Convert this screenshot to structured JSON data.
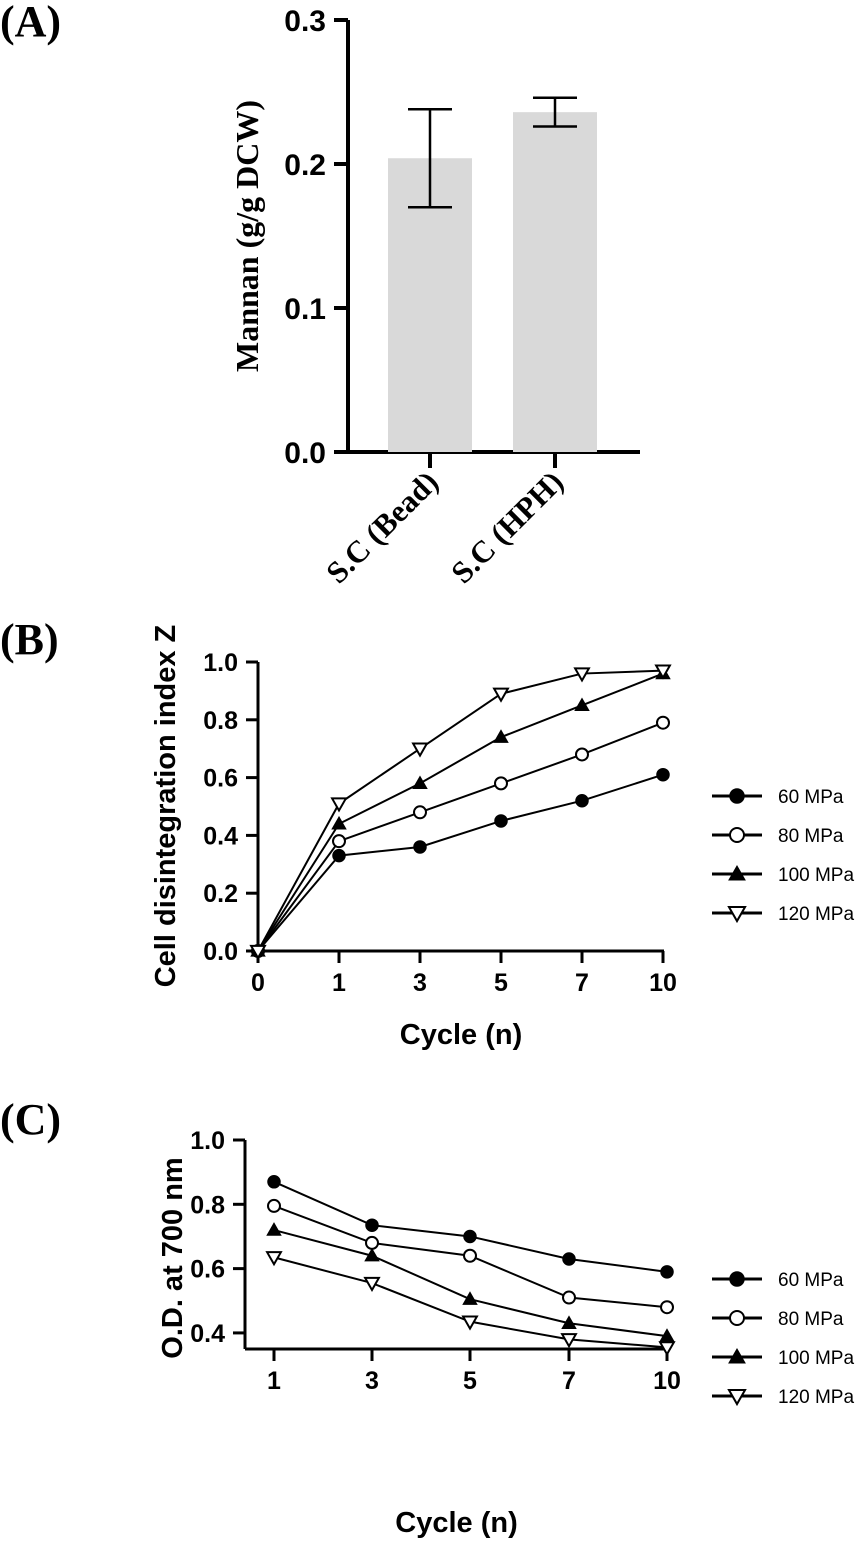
{
  "panels": {
    "a": "(A)",
    "b": "(B)",
    "c": "(C)"
  },
  "colors": {
    "bar_fill": "#d9d9d9",
    "ink": "#000000"
  },
  "chart_data": [
    {
      "type": "bar",
      "panel": "(A)",
      "title": "",
      "xlabel": "",
      "ylabel": "Mannan (g/g DCW)",
      "categories": [
        "S.C (Bead)",
        "S.C (HPH)"
      ],
      "values": [
        0.204,
        0.236
      ],
      "error": [
        0.034,
        0.01
      ],
      "ylim": [
        0,
        0.3
      ],
      "yticks": [
        "0.0",
        "0.1",
        "0.2",
        "0.3"
      ],
      "grid": false,
      "legend": "none"
    },
    {
      "type": "line",
      "panel": "(B)",
      "title": "",
      "xlabel": "Cycle (n)",
      "ylabel": "Cell disintegration index Z",
      "x": [
        "0",
        "1",
        "3",
        "5",
        "7",
        "10"
      ],
      "ylim": [
        0,
        1.0
      ],
      "yticks": [
        "0.0",
        "0.2",
        "0.4",
        "0.6",
        "0.8",
        "1.0"
      ],
      "grid": false,
      "legend": "right",
      "series": [
        {
          "name": "60 MPa",
          "marker": "filled-circle",
          "values": [
            0.0,
            0.33,
            0.36,
            0.45,
            0.52,
            0.61
          ]
        },
        {
          "name": "80 MPa",
          "marker": "open-circle",
          "values": [
            0.0,
            0.38,
            0.48,
            0.58,
            0.68,
            0.79
          ]
        },
        {
          "name": "100 MPa",
          "marker": "filled-triangle",
          "values": [
            0.0,
            0.44,
            0.58,
            0.74,
            0.85,
            0.96
          ]
        },
        {
          "name": "120 MPa",
          "marker": "open-triangle-down",
          "values": [
            0.0,
            0.51,
            0.7,
            0.89,
            0.96,
            0.97
          ]
        }
      ]
    },
    {
      "type": "line",
      "panel": "(C)",
      "title": "",
      "xlabel": "Cycle (n)",
      "ylabel": "O.D. at 700 nm",
      "x": [
        "1",
        "3",
        "5",
        "7",
        "10"
      ],
      "ylim": [
        0.35,
        1.0
      ],
      "yticks": [
        "0.4",
        "0.6",
        "0.8",
        "1.0"
      ],
      "ytick_values": [
        0.4,
        0.6,
        0.8,
        1.0
      ],
      "grid": false,
      "legend": "right",
      "series": [
        {
          "name": "60 MPa",
          "marker": "filled-circle",
          "values": [
            0.87,
            0.735,
            0.7,
            0.63,
            0.59
          ]
        },
        {
          "name": "80 MPa",
          "marker": "open-circle",
          "values": [
            0.795,
            0.68,
            0.64,
            0.51,
            0.48
          ]
        },
        {
          "name": "100 MPa",
          "marker": "filled-triangle",
          "values": [
            0.72,
            0.64,
            0.505,
            0.43,
            0.39
          ]
        },
        {
          "name": "120 MPa",
          "marker": "open-triangle-down",
          "values": [
            0.635,
            0.555,
            0.435,
            0.38,
            0.355
          ]
        }
      ]
    }
  ]
}
